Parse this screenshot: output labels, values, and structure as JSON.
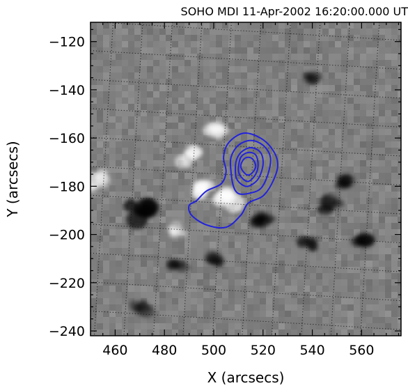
{
  "chart_data": {
    "type": "heatmap",
    "title": "SOHO MDI 11-Apr-2002 16:20:00.000 UT",
    "xlabel": "X (arcsecs)",
    "ylabel": "Y (arcsecs)",
    "xlim": [
      450,
      576
    ],
    "ylim": [
      -242,
      -112
    ],
    "x_ticks": [
      460,
      480,
      500,
      520,
      540,
      560
    ],
    "y_ticks": [
      -120,
      -140,
      -160,
      -180,
      -200,
      -220,
      -240
    ],
    "grid": "dotted heliographic",
    "background": "grayscale magnetogram",
    "contour_color": "#2222dd",
    "contours": [
      {
        "level": 1,
        "points": [
          [
            493,
            -186
          ],
          [
            497,
            -182
          ],
          [
            503,
            -179
          ],
          [
            505,
            -174
          ],
          [
            504,
            -168
          ],
          [
            506,
            -162
          ],
          [
            512,
            -158
          ],
          [
            519,
            -160
          ],
          [
            524,
            -165
          ],
          [
            526,
            -171
          ],
          [
            524,
            -178
          ],
          [
            520,
            -184
          ],
          [
            514,
            -187
          ],
          [
            511,
            -192
          ],
          [
            505,
            -197
          ],
          [
            497,
            -196
          ],
          [
            491,
            -192
          ],
          [
            490,
            -188
          ]
        ]
      },
      {
        "level": 2,
        "points": [
          [
            508,
            -180
          ],
          [
            507,
            -174
          ],
          [
            507,
            -168
          ],
          [
            510,
            -163
          ],
          [
            515,
            -161
          ],
          [
            520,
            -163
          ],
          [
            523,
            -168
          ],
          [
            522,
            -175
          ],
          [
            519,
            -181
          ],
          [
            514,
            -183
          ],
          [
            510,
            -183
          ]
        ]
      },
      {
        "level": 3,
        "points": [
          [
            509,
            -176
          ],
          [
            509,
            -170
          ],
          [
            511,
            -166
          ],
          [
            515,
            -164
          ],
          [
            519,
            -166
          ],
          [
            520,
            -171
          ],
          [
            518,
            -177
          ],
          [
            514,
            -180
          ],
          [
            511,
            -179
          ]
        ]
      },
      {
        "level": 4,
        "points": [
          [
            510,
            -173
          ],
          [
            511,
            -168
          ],
          [
            514,
            -166
          ],
          [
            517,
            -167
          ],
          [
            518,
            -171
          ],
          [
            517,
            -175
          ],
          [
            514,
            -178
          ],
          [
            511,
            -176
          ]
        ]
      },
      {
        "level": 5,
        "points": [
          [
            511,
            -172
          ],
          [
            512,
            -169
          ],
          [
            514,
            -168
          ],
          [
            516,
            -169
          ],
          [
            517,
            -172
          ],
          [
            515,
            -175
          ],
          [
            513,
            -175
          ]
        ]
      }
    ],
    "features": [
      {
        "kind": "bright",
        "x": 505,
        "y": -185,
        "strength": 0.9
      },
      {
        "kind": "bright",
        "x": 494,
        "y": -180,
        "strength": 0.8
      },
      {
        "kind": "bright",
        "x": 490,
        "y": -168,
        "strength": 0.6
      },
      {
        "kind": "bright",
        "x": 500,
        "y": -157,
        "strength": 0.5
      },
      {
        "kind": "bright",
        "x": 452,
        "y": -178,
        "strength": 0.6
      },
      {
        "kind": "bright",
        "x": 485,
        "y": -198,
        "strength": 0.3
      },
      {
        "kind": "dark",
        "x": 470,
        "y": -191,
        "strength": 1.0
      },
      {
        "kind": "dark",
        "x": 520,
        "y": -193,
        "strength": 0.6
      },
      {
        "kind": "dark",
        "x": 548,
        "y": -188,
        "strength": 0.5
      },
      {
        "kind": "dark",
        "x": 560,
        "y": -202,
        "strength": 0.55
      },
      {
        "kind": "dark",
        "x": 538,
        "y": -204,
        "strength": 0.5
      },
      {
        "kind": "dark",
        "x": 552,
        "y": -178,
        "strength": 0.45
      },
      {
        "kind": "dark",
        "x": 500,
        "y": -210,
        "strength": 0.35
      },
      {
        "kind": "dark",
        "x": 470,
        "y": -230,
        "strength": 0.35
      },
      {
        "kind": "dark",
        "x": 485,
        "y": -212,
        "strength": 0.3
      },
      {
        "kind": "dark",
        "x": 540,
        "y": -135,
        "strength": 0.25
      }
    ]
  }
}
